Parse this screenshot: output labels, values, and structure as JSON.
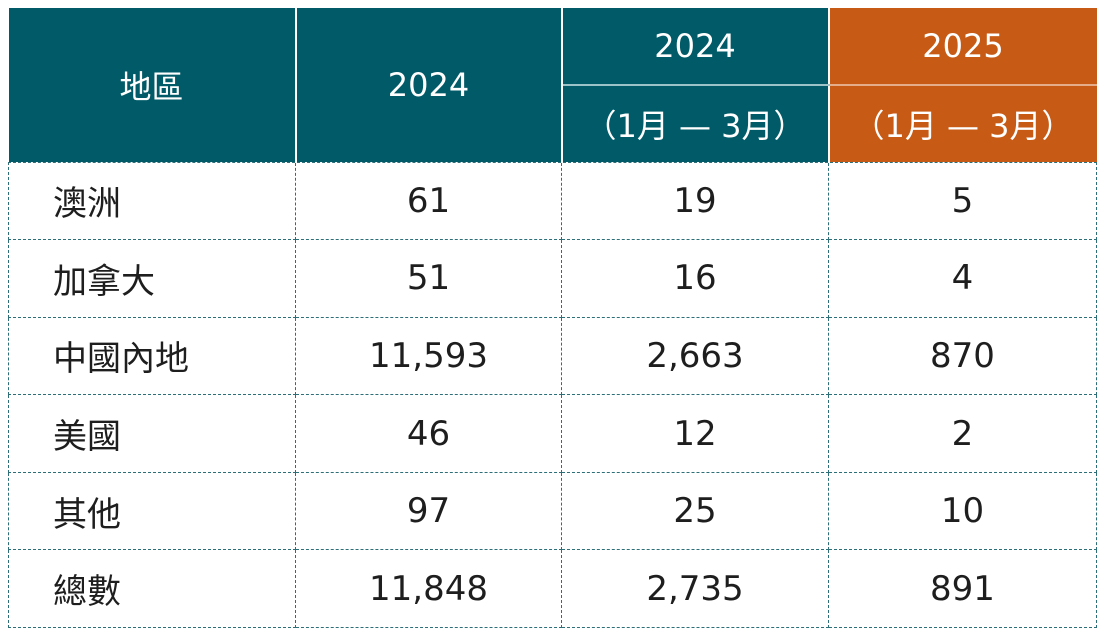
{
  "table": {
    "header": {
      "region": "地區",
      "year_full": "2024",
      "period_prev_year": "2024",
      "period_prev_range": "（1月 — 3月）",
      "period_curr_year": "2025",
      "period_curr_range": "（1月 — 3月）"
    },
    "rows": [
      {
        "region": "澳洲",
        "y2024": "61",
        "q1_2024": "19",
        "q1_2025": "5"
      },
      {
        "region": "加拿大",
        "y2024": "51",
        "q1_2024": "16",
        "q1_2025": "4"
      },
      {
        "region": "中國內地",
        "y2024": "11,593",
        "q1_2024": "2,663",
        "q1_2025": "870"
      },
      {
        "region": "美國",
        "y2024": "46",
        "q1_2024": "12",
        "q1_2025": "2"
      },
      {
        "region": "其他",
        "y2024": "97",
        "q1_2024": "25",
        "q1_2025": "10"
      },
      {
        "region": "總數",
        "y2024": "11,848",
        "q1_2024": "2,735",
        "q1_2025": "891"
      }
    ]
  },
  "colors": {
    "header_teal": "#005a67",
    "header_orange": "#c75a14",
    "border_dashed": "#2d6f78"
  }
}
